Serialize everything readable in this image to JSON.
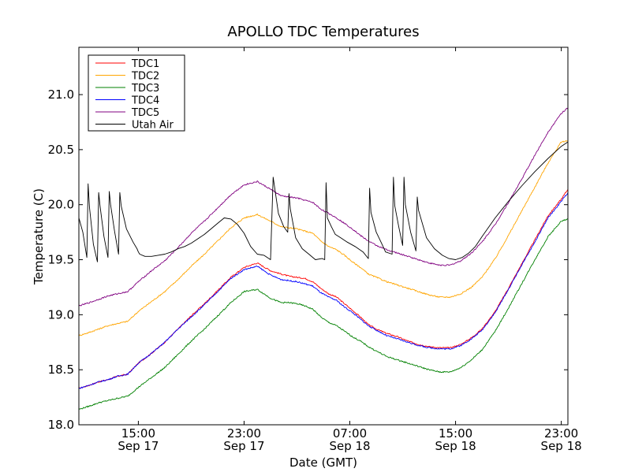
{
  "chart_data": {
    "type": "line",
    "title": "APOLLO TDC Temperatures",
    "xlabel": "Date (GMT)",
    "ylabel": "Temperature (C)",
    "x_unit": "hours since Sep 17 00:00 GMT",
    "xlim": [
      10.5,
      47.5
    ],
    "ylim": [
      18.0,
      21.43
    ],
    "yticks": [
      {
        "value": 18.0,
        "label": "18.0"
      },
      {
        "value": 18.5,
        "label": "18.5"
      },
      {
        "value": 19.0,
        "label": "19.0"
      },
      {
        "value": 19.5,
        "label": "19.5"
      },
      {
        "value": 20.0,
        "label": "20.0"
      },
      {
        "value": 20.5,
        "label": "20.5"
      },
      {
        "value": 21.0,
        "label": "21.0"
      }
    ],
    "xticks": [
      {
        "value": 15,
        "time": "15:00",
        "date": "Sep 17"
      },
      {
        "value": 23,
        "time": "23:00",
        "date": "Sep 17"
      },
      {
        "value": 31,
        "time": "07:00",
        "date": "Sep 18"
      },
      {
        "value": 39,
        "time": "15:00",
        "date": "Sep 18"
      },
      {
        "value": 47,
        "time": "23:00",
        "date": "Sep 18"
      }
    ],
    "legend": {
      "location": "top-left"
    },
    "grid": false,
    "series": [
      {
        "name": "TDC1",
        "color": "#ff0000",
        "x": [
          10.5,
          11.3,
          12.0,
          12.7,
          13.4,
          14.2,
          15.0,
          16.0,
          17.0,
          18.0,
          19.0,
          20.0,
          21.0,
          22.0,
          23.0,
          24.0,
          25.0,
          25.8,
          26.4,
          27.0,
          27.6,
          28.2,
          28.8,
          29.4,
          30.0,
          30.6,
          31.2,
          31.8,
          32.4,
          33.0,
          33.8,
          34.6,
          35.4,
          36.2,
          37.0,
          37.8,
          38.6,
          39.4,
          40.2,
          41.0,
          42.0,
          43.0,
          44.0,
          45.0,
          46.0,
          47.0,
          47.5
        ],
        "y": [
          18.33,
          18.36,
          18.39,
          18.41,
          18.44,
          18.46,
          18.56,
          18.65,
          18.75,
          18.87,
          18.99,
          19.1,
          19.22,
          19.34,
          19.43,
          19.47,
          19.4,
          19.37,
          19.35,
          19.34,
          19.33,
          19.3,
          19.24,
          19.19,
          19.16,
          19.1,
          19.04,
          18.98,
          18.91,
          18.87,
          18.83,
          18.8,
          18.76,
          18.73,
          18.71,
          18.7,
          18.7,
          18.73,
          18.79,
          18.87,
          19.03,
          19.24,
          19.46,
          19.68,
          19.9,
          20.05,
          20.14
        ]
      },
      {
        "name": "TDC2",
        "color": "#ffa500",
        "x": [
          10.5,
          11.3,
          12.0,
          12.7,
          13.4,
          14.2,
          15.0,
          16.0,
          17.0,
          18.0,
          19.0,
          20.0,
          21.0,
          22.0,
          23.0,
          24.0,
          25.0,
          25.8,
          26.4,
          27.0,
          27.6,
          28.2,
          28.8,
          29.4,
          30.0,
          30.6,
          31.2,
          31.8,
          32.4,
          33.0,
          33.8,
          34.6,
          35.4,
          36.2,
          37.0,
          37.8,
          38.6,
          39.4,
          40.2,
          41.0,
          42.0,
          43.0,
          44.0,
          45.0,
          46.0,
          47.0,
          47.5
        ],
        "y": [
          18.81,
          18.84,
          18.87,
          18.9,
          18.92,
          18.94,
          19.03,
          19.12,
          19.21,
          19.32,
          19.44,
          19.55,
          19.67,
          19.79,
          19.88,
          19.91,
          19.85,
          19.8,
          19.79,
          19.78,
          19.76,
          19.74,
          19.67,
          19.62,
          19.59,
          19.54,
          19.48,
          19.43,
          19.37,
          19.34,
          19.3,
          19.27,
          19.24,
          19.21,
          19.18,
          19.16,
          19.16,
          19.19,
          19.25,
          19.34,
          19.51,
          19.72,
          19.94,
          20.16,
          20.38,
          20.57,
          20.58
        ]
      },
      {
        "name": "TDC3",
        "color": "#008000",
        "x": [
          10.5,
          11.3,
          12.0,
          12.7,
          13.4,
          14.2,
          15.0,
          16.0,
          17.0,
          18.0,
          19.0,
          20.0,
          21.0,
          22.0,
          23.0,
          24.0,
          25.0,
          25.8,
          26.4,
          27.0,
          27.6,
          28.2,
          28.8,
          29.4,
          30.0,
          30.6,
          31.2,
          31.8,
          32.4,
          33.0,
          33.8,
          34.6,
          35.4,
          36.2,
          37.0,
          37.8,
          38.6,
          39.4,
          40.2,
          41.0,
          42.0,
          43.0,
          44.0,
          45.0,
          46.0,
          47.0,
          47.5
        ],
        "y": [
          18.14,
          18.17,
          18.2,
          18.22,
          18.24,
          18.26,
          18.34,
          18.43,
          18.52,
          18.64,
          18.76,
          18.87,
          18.99,
          19.11,
          19.21,
          19.23,
          19.15,
          19.11,
          19.11,
          19.1,
          19.08,
          19.05,
          18.98,
          18.93,
          18.9,
          18.85,
          18.8,
          18.76,
          18.71,
          18.67,
          18.62,
          18.59,
          18.56,
          18.53,
          18.5,
          18.48,
          18.48,
          18.52,
          18.59,
          18.68,
          18.85,
          19.06,
          19.28,
          19.5,
          19.71,
          19.85,
          19.87
        ]
      },
      {
        "name": "TDC4",
        "color": "#0000ff",
        "x": [
          10.5,
          11.3,
          12.0,
          12.7,
          13.4,
          14.2,
          15.0,
          16.0,
          17.0,
          18.0,
          19.0,
          20.0,
          21.0,
          22.0,
          23.0,
          24.0,
          25.0,
          25.8,
          26.4,
          27.0,
          27.6,
          28.2,
          28.8,
          29.4,
          30.0,
          30.6,
          31.2,
          31.8,
          32.4,
          33.0,
          33.8,
          34.6,
          35.4,
          36.2,
          37.0,
          37.8,
          38.6,
          39.4,
          40.2,
          41.0,
          42.0,
          43.0,
          44.0,
          45.0,
          46.0,
          47.0,
          47.5
        ],
        "y": [
          18.33,
          18.36,
          18.39,
          18.41,
          18.44,
          18.46,
          18.56,
          18.65,
          18.75,
          18.87,
          18.98,
          19.09,
          19.21,
          19.33,
          19.41,
          19.44,
          19.36,
          19.32,
          19.31,
          19.3,
          19.28,
          19.26,
          19.2,
          19.16,
          19.13,
          19.07,
          19.02,
          18.96,
          18.9,
          18.86,
          18.81,
          18.78,
          18.75,
          18.72,
          18.7,
          18.69,
          18.69,
          18.72,
          18.78,
          18.86,
          19.02,
          19.23,
          19.45,
          19.66,
          19.88,
          20.03,
          20.11
        ]
      },
      {
        "name": "TDC5",
        "color": "#800080",
        "x": [
          10.5,
          11.3,
          12.0,
          12.7,
          13.4,
          14.2,
          15.0,
          16.0,
          17.0,
          18.0,
          19.0,
          20.0,
          21.0,
          22.0,
          23.0,
          24.0,
          25.0,
          25.8,
          26.4,
          27.0,
          27.6,
          28.2,
          28.8,
          29.4,
          30.0,
          30.6,
          31.2,
          31.8,
          32.4,
          33.0,
          33.8,
          34.6,
          35.4,
          36.2,
          37.0,
          37.8,
          38.6,
          39.4,
          40.2,
          41.0,
          42.0,
          43.0,
          44.0,
          45.0,
          46.0,
          47.0,
          47.5
        ],
        "y": [
          19.08,
          19.11,
          19.14,
          19.17,
          19.19,
          19.21,
          19.3,
          19.4,
          19.49,
          19.61,
          19.74,
          19.85,
          19.97,
          20.09,
          20.18,
          20.21,
          20.14,
          20.08,
          20.07,
          20.06,
          20.04,
          20.02,
          19.96,
          19.92,
          19.88,
          19.83,
          19.78,
          19.72,
          19.67,
          19.63,
          19.59,
          19.56,
          19.53,
          19.5,
          19.47,
          19.45,
          19.45,
          19.49,
          19.56,
          19.66,
          19.82,
          20.02,
          20.23,
          20.45,
          20.66,
          20.83,
          20.88
        ]
      },
      {
        "name": "Utah Air",
        "color": "#000000",
        "x": [
          10.5,
          10.8,
          11.1,
          11.2,
          11.3,
          11.6,
          11.9,
          12.0,
          12.1,
          12.4,
          12.7,
          12.8,
          12.9,
          13.2,
          13.5,
          13.6,
          13.7,
          14.1,
          14.6,
          14.9,
          15.0,
          15.1,
          15.5,
          16.0,
          16.5,
          17.0,
          17.5,
          18.0,
          18.5,
          19.0,
          19.5,
          20.0,
          20.5,
          21.0,
          21.5,
          22.0,
          22.5,
          23.0,
          23.5,
          24.0,
          24.5,
          25.0,
          25.2,
          25.6,
          26.0,
          26.3,
          26.4,
          26.5,
          26.9,
          27.4,
          27.9,
          28.4,
          28.9,
          29.1,
          29.2,
          29.3,
          29.6,
          29.9,
          30.3,
          30.8,
          31.4,
          32.0,
          32.4,
          32.5,
          32.6,
          33.0,
          33.4,
          33.7,
          34.2,
          34.3,
          34.4,
          34.7,
          35.0,
          35.1,
          35.2,
          35.6,
          36.0,
          36.1,
          36.2,
          36.8,
          37.4,
          38.0,
          38.5,
          39.0,
          39.5,
          40.0,
          40.5,
          41.0,
          42.0,
          43.0,
          44.0,
          45.0,
          46.0,
          47.0,
          47.5
        ],
        "y": [
          19.88,
          19.75,
          19.52,
          20.19,
          19.98,
          19.64,
          19.48,
          20.11,
          19.99,
          19.71,
          19.52,
          20.12,
          20.0,
          19.76,
          19.55,
          20.11,
          19.99,
          19.78,
          19.66,
          19.6,
          19.57,
          19.55,
          19.53,
          19.53,
          19.54,
          19.55,
          19.57,
          19.6,
          19.62,
          19.65,
          19.69,
          19.73,
          19.78,
          19.83,
          19.88,
          19.87,
          19.82,
          19.74,
          19.62,
          19.55,
          19.54,
          19.5,
          20.25,
          19.92,
          19.8,
          19.75,
          20.1,
          19.96,
          19.7,
          19.6,
          19.55,
          19.5,
          19.51,
          19.5,
          20.2,
          19.88,
          19.8,
          19.73,
          19.7,
          19.66,
          19.62,
          19.57,
          19.51,
          20.15,
          19.93,
          19.75,
          19.65,
          19.57,
          19.55,
          20.25,
          19.99,
          19.8,
          19.63,
          20.25,
          20.0,
          19.75,
          19.58,
          20.07,
          19.95,
          19.7,
          19.6,
          19.54,
          19.51,
          19.5,
          19.52,
          19.56,
          19.62,
          19.71,
          19.88,
          20.03,
          20.17,
          20.3,
          20.42,
          20.53,
          20.57
        ]
      }
    ]
  }
}
